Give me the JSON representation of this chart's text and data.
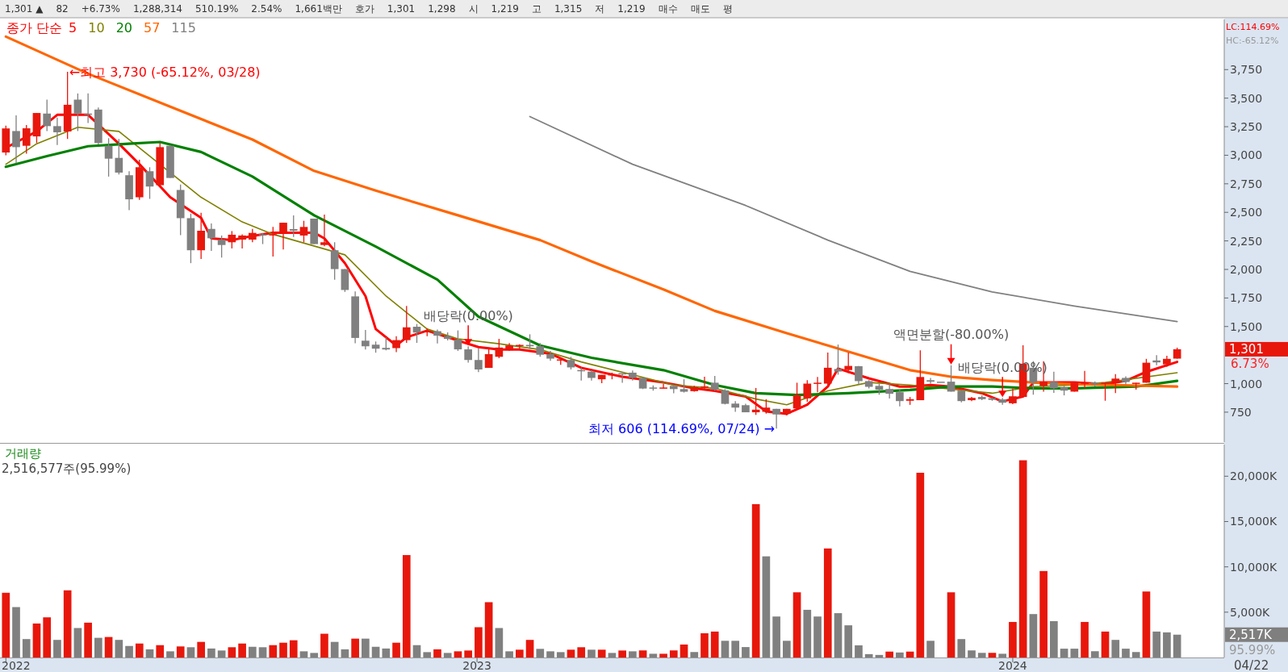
{
  "chart_data": [
    {
      "type": "candlestick",
      "tick_labels": "y",
      "legend": "top left",
      "legend_title": "종가 단순",
      "xlim": [
        "2022-02-10",
        "2024-05-23"
      ],
      "ylim": [
        488,
        4190
      ],
      "yticks": [
        750,
        {
          "value": 1000,
          "label": "1,000"
        },
        {
          "value": 1500,
          "label": "1,500"
        },
        {
          "value": 1750,
          "label": "1,750"
        },
        {
          "value": 2000,
          "label": "2,000"
        },
        {
          "value": 2250,
          "label": "2,250"
        },
        {
          "value": 2500,
          "label": "2,500"
        },
        {
          "value": 2750,
          "label": "2,750"
        },
        {
          "value": 3000,
          "label": "3,000"
        },
        {
          "value": 3250,
          "label": "3,250"
        },
        {
          "value": 3500,
          "label": "3,500"
        },
        {
          "value": 3750,
          "label": "3,750"
        }
      ],
      "x": [
        "2022-02-14",
        "2022-02-21",
        "2022-02-28",
        "2022-03-07",
        "2022-03-14",
        "2022-03-21",
        "2022-03-28",
        "2022-04-04",
        "2022-04-11",
        "2022-04-18",
        "2022-04-25",
        "2022-05-02",
        "2022-05-09",
        "2022-05-16",
        "2022-05-23",
        "2022-05-30",
        "2022-06-06",
        "2022-06-13",
        "2022-06-20",
        "2022-06-27",
        "2022-07-04",
        "2022-07-11",
        "2022-07-18",
        "2022-07-25",
        "2022-08-01",
        "2022-08-08",
        "2022-08-15",
        "2022-08-22",
        "2022-08-29",
        "2022-09-05",
        "2022-09-12",
        "2022-09-19",
        "2022-09-26",
        "2022-10-03",
        "2022-10-10",
        "2022-10-17",
        "2022-10-24",
        "2022-10-31",
        "2022-11-07",
        "2022-11-14",
        "2022-11-21",
        "2022-11-28",
        "2022-12-05",
        "2022-12-12",
        "2022-12-19",
        "2022-12-26",
        "2023-01-02",
        "2023-01-09",
        "2023-01-16",
        "2023-01-23",
        "2023-01-30",
        "2023-02-06",
        "2023-02-13",
        "2023-02-20",
        "2023-02-27",
        "2023-03-06",
        "2023-03-13",
        "2023-03-20",
        "2023-03-27",
        "2023-04-03",
        "2023-04-10",
        "2023-04-17",
        "2023-04-24",
        "2023-05-01",
        "2023-05-08",
        "2023-05-15",
        "2023-05-22",
        "2023-05-29",
        "2023-06-05",
        "2023-06-12",
        "2023-06-19",
        "2023-06-26",
        "2023-07-03",
        "2023-07-10",
        "2023-07-17",
        "2023-07-24",
        "2023-07-31",
        "2023-08-07",
        "2023-08-14",
        "2023-08-21",
        "2023-08-28",
        "2023-09-04",
        "2023-09-11",
        "2023-09-18",
        "2023-09-25",
        "2023-10-02",
        "2023-10-09",
        "2023-10-16",
        "2023-10-23",
        "2023-10-30",
        "2023-11-06",
        "2023-11-13",
        "2023-11-20",
        "2023-11-27",
        "2023-12-04",
        "2023-12-11",
        "2023-12-18",
        "2023-12-25",
        "2024-01-01",
        "2024-01-08",
        "2024-01-15",
        "2024-01-22",
        "2024-01-29",
        "2024-02-05",
        "2024-02-12",
        "2024-02-19",
        "2024-02-26",
        "2024-03-04",
        "2024-03-11",
        "2024-03-18",
        "2024-03-25",
        "2024-04-01",
        "2024-04-08",
        "2024-04-15",
        "2024-04-22"
      ],
      "ohlc": [
        [
          3024,
          3260,
          3000,
          3235
        ],
        [
          3212,
          3349,
          2931,
          3071
        ],
        [
          3083,
          3264,
          3013,
          3236
        ],
        [
          3165,
          3370,
          3107,
          3370
        ],
        [
          3365,
          3487,
          3212,
          3255
        ],
        [
          3255,
          3330,
          3090,
          3201
        ],
        [
          3208,
          3730,
          3142,
          3442
        ],
        [
          3487,
          3541,
          3212,
          3365
        ],
        [
          3365,
          3541,
          3283,
          3360
        ],
        [
          3400,
          3419,
          3095,
          3107
        ],
        [
          3083,
          3149,
          2813,
          2970
        ],
        [
          2977,
          3142,
          2832,
          2848
        ],
        [
          2825,
          2860,
          2520,
          2614
        ],
        [
          2632,
          2961,
          2609,
          2895
        ],
        [
          2860,
          2895,
          2618,
          2726
        ],
        [
          2738,
          3107,
          2738,
          3071
        ],
        [
          3083,
          3090,
          2801,
          2801
        ],
        [
          2696,
          2743,
          2301,
          2449
        ],
        [
          2449,
          2489,
          2055,
          2168
        ],
        [
          2168,
          2496,
          2092,
          2339
        ],
        [
          2355,
          2402,
          2163,
          2273
        ],
        [
          2261,
          2297,
          2104,
          2214
        ],
        [
          2238,
          2336,
          2184,
          2304
        ],
        [
          2261,
          2308,
          2184,
          2297
        ],
        [
          2261,
          2355,
          2238,
          2320
        ],
        [
          2308,
          2320,
          2222,
          2297
        ],
        [
          2297,
          2372,
          2113,
          2308
        ],
        [
          2320,
          2409,
          2175,
          2409
        ],
        [
          2353,
          2473,
          2285,
          2339
        ],
        [
          2297,
          2426,
          2238,
          2372
        ],
        [
          2445,
          2445,
          2222,
          2222
        ],
        [
          2214,
          2480,
          2203,
          2238
        ],
        [
          2168,
          2238,
          1909,
          2003
        ],
        [
          2003,
          2003,
          1803,
          1820
        ],
        [
          1764,
          1808,
          1353,
          1400
        ],
        [
          1376,
          1470,
          1299,
          1327
        ],
        [
          1341,
          1369,
          1271,
          1306
        ],
        [
          1313,
          1404,
          1292,
          1299
        ],
        [
          1311,
          1416,
          1275,
          1381
        ],
        [
          1381,
          1681,
          1357,
          1493
        ],
        [
          1498,
          1522,
          1357,
          1447
        ],
        [
          1455,
          1485,
          1415,
          1460
        ],
        [
          1459,
          1473,
          1351,
          1420
        ],
        [
          1415,
          1448,
          1378,
          1392
        ],
        [
          1385,
          1466,
          1286,
          1300
        ],
        [
          1300,
          1327,
          1184,
          1207
        ],
        [
          1207,
          1309,
          1101,
          1124
        ],
        [
          1138,
          1316,
          1138,
          1258
        ],
        [
          1235,
          1392,
          1223,
          1316
        ],
        [
          1300,
          1355,
          1286,
          1334
        ],
        [
          1332,
          1344,
          1304,
          1339
        ],
        [
          1339,
          1432,
          1304,
          1327
        ],
        [
          1327,
          1355,
          1235,
          1253
        ],
        [
          1258,
          1286,
          1200,
          1219
        ],
        [
          1202,
          1230,
          1165,
          1212
        ],
        [
          1207,
          1235,
          1124,
          1142
        ],
        [
          1119,
          1142,
          1027,
          1108
        ],
        [
          1105,
          1119,
          1027,
          1050
        ],
        [
          1038,
          1077,
          1003,
          1077
        ],
        [
          1073,
          1096,
          1038,
          1082
        ],
        [
          1091,
          1091,
          1008,
          1082
        ],
        [
          1096,
          1115,
          1027,
          1050
        ],
        [
          1050,
          1054,
          952,
          957
        ],
        [
          966,
          985,
          939,
          957
        ],
        [
          957,
          999,
          957,
          966
        ],
        [
          980,
          992,
          915,
          952
        ],
        [
          952,
          1038,
          922,
          929
        ],
        [
          934,
          980,
          929,
          969
        ],
        [
          966,
          1061,
          952,
          976
        ],
        [
          1008,
          1068,
          934,
          946
        ],
        [
          941,
          952,
          818,
          823
        ],
        [
          825,
          846,
          753,
          790
        ],
        [
          811,
          823,
          749,
          749
        ],
        [
          749,
          962,
          726,
          772
        ],
        [
          753,
          864,
          737,
          790
        ],
        [
          779,
          779,
          606,
          730
        ],
        [
          737,
          779,
          721,
          779
        ],
        [
          783,
          1008,
          783,
          899
        ],
        [
          871,
          1030,
          842,
          1000
        ],
        [
          1000,
          1058,
          925,
          1008
        ],
        [
          1000,
          1272,
          980,
          1139
        ],
        [
          1128,
          1342,
          1078,
          1106
        ],
        [
          1119,
          1272,
          1092,
          1155
        ],
        [
          1153,
          1153,
          994,
          1022
        ],
        [
          1022,
          1030,
          958,
          972
        ],
        [
          980,
          1000,
          903,
          947
        ],
        [
          953,
          994,
          869,
          911
        ],
        [
          925,
          947,
          800,
          847
        ],
        [
          850,
          883,
          814,
          864
        ],
        [
          855,
          1292,
          855,
          1058
        ],
        [
          1030,
          1050,
          1000,
          1017
        ],
        [
          1017,
          1017,
          1017,
          1017
        ],
        [
          1017,
          1161,
          930,
          930
        ],
        [
          939,
          939,
          836,
          847
        ],
        [
          855,
          883,
          847,
          875
        ],
        [
          883,
          897,
          855,
          864
        ],
        [
          872,
          880,
          850,
          858
        ],
        [
          861,
          875,
          814,
          833
        ],
        [
          828,
          958,
          820,
          889
        ],
        [
          883,
          1336,
          883,
          1175
        ],
        [
          1139,
          1197,
          903,
          1008
        ],
        [
          980,
          1197,
          930,
          1017
        ],
        [
          1014,
          1105,
          919,
          958
        ],
        [
          967,
          980,
          897,
          939
        ],
        [
          930,
          1017,
          930,
          1008
        ],
        [
          997,
          1111,
          958,
          1008
        ],
        [
          1008,
          1019,
          975,
          994
        ],
        [
          1000,
          1008,
          850,
          1008
        ],
        [
          1008,
          1083,
          917,
          1044
        ],
        [
          1050,
          1064,
          994,
          1014
        ],
        [
          1003,
          1008,
          947,
          1008
        ],
        [
          1008,
          1217,
          1008,
          1183
        ],
        [
          1203,
          1250,
          1161,
          1186
        ],
        [
          1169,
          1244,
          1147,
          1217
        ],
        [
          1219,
          1315,
          1219,
          1301
        ]
      ],
      "colors": [
        "#e8170c",
        "#808080",
        "#e8170c",
        "#e8170c",
        "#808080",
        "#808080",
        "#e8170c",
        "#808080",
        "#808080",
        "#808080",
        "#808080",
        "#808080",
        "#808080",
        "#e8170c",
        "#808080",
        "#e8170c",
        "#808080",
        "#808080",
        "#808080",
        "#e8170c",
        "#808080",
        "#808080",
        "#e8170c",
        "#e8170c",
        "#e8170c",
        "#808080",
        "#e8170c",
        "#e8170c",
        "#808080",
        "#e8170c",
        "#808080",
        "#e8170c",
        "#808080",
        "#808080",
        "#808080",
        "#808080",
        "#808080",
        "#808080",
        "#e8170c",
        "#e8170c",
        "#808080",
        "#e8170c",
        "#808080",
        "#808080",
        "#808080",
        "#808080",
        "#808080",
        "#e8170c",
        "#e8170c",
        "#e8170c",
        "#e8170c",
        "#808080",
        "#808080",
        "#808080",
        "#e8170c",
        "#808080",
        "#808080",
        "#808080",
        "#e8170c",
        "#e8170c",
        "#808080",
        "#808080",
        "#808080",
        "#808080",
        "#e8170c",
        "#808080",
        "#808080",
        "#e8170c",
        "#e8170c",
        "#808080",
        "#808080",
        "#808080",
        "#808080",
        "#e8170c",
        "#e8170c",
        "#808080",
        "#e8170c",
        "#e8170c",
        "#e8170c",
        "#e8170c",
        "#e8170c",
        "#808080",
        "#e8170c",
        "#808080",
        "#808080",
        "#808080",
        "#808080",
        "#808080",
        "#e8170c",
        "#e8170c",
        "#808080",
        "#808080",
        "#808080",
        "#808080",
        "#e8170c",
        "#808080",
        "#808080",
        "#808080",
        "#e8170c",
        "#e8170c",
        "#808080",
        "#e8170c",
        "#808080",
        "#808080",
        "#e8170c",
        "#e8170c",
        "#808080",
        "#e8170c",
        "#e8170c",
        "#808080",
        "#e8170c",
        "#e8170c",
        "#808080",
        "#e8170c",
        "#e8170c"
      ],
      "series": [
        {
          "type": "line",
          "name": "5",
          "color": "#ff0000",
          "x": [
            "2022-02-14",
            "2022-03-07",
            "2022-03-21",
            "2022-04-11",
            "2022-05-02",
            "2022-05-16",
            "2022-06-06",
            "2022-06-27",
            "2022-07-04",
            "2022-07-18",
            "2022-08-01",
            "2022-08-15",
            "2022-09-12",
            "2022-09-19",
            "2022-10-03",
            "2022-10-17",
            "2022-10-24",
            "2022-11-07",
            "2022-11-14",
            "2022-11-28",
            "2022-12-12",
            "2023-01-02",
            "2023-01-16",
            "2023-01-30",
            "2023-02-20",
            "2023-03-13",
            "2023-04-10",
            "2023-05-08",
            "2023-05-29",
            "2023-06-12",
            "2023-07-03",
            "2023-07-17",
            "2023-07-31",
            "2023-08-14",
            "2023-08-28",
            "2023-09-04",
            "2023-09-25",
            "2023-10-16",
            "2023-10-23",
            "2023-11-06",
            "2023-11-20",
            "2023-12-11",
            "2023-12-25",
            "2024-01-08",
            "2024-01-15",
            "2024-02-12",
            "2024-03-04",
            "2024-03-18",
            "2024-04-01",
            "2024-04-22"
          ],
          "values": [
            3065,
            3209,
            3354,
            3354,
            3101,
            2921,
            2632,
            2452,
            2272,
            2257,
            2293,
            2322,
            2322,
            2272,
            2055,
            1767,
            1478,
            1334,
            1406,
            1464,
            1406,
            1320,
            1298,
            1298,
            1262,
            1139,
            1060,
            1010,
            959,
            937,
            887,
            757,
            736,
            815,
            974,
            1132,
            1046,
            974,
            974,
            988,
            974,
            916,
            844,
            887,
            1010,
            1010,
            995,
            1024,
            1103,
            1190
          ]
        },
        {
          "type": "line",
          "name": "10",
          "color": "#808000",
          "x": [
            "2022-02-14",
            "2022-03-07",
            "2022-04-04",
            "2022-05-02",
            "2022-06-27",
            "2022-07-25",
            "2022-08-15",
            "2022-10-03",
            "2022-10-31",
            "2022-11-28",
            "2022-12-19",
            "2023-01-16",
            "2023-02-13",
            "2023-03-13",
            "2023-05-15",
            "2023-06-12",
            "2023-07-10",
            "2023-07-31",
            "2023-08-28",
            "2023-09-25",
            "2023-10-23",
            "2023-12-18",
            "2024-01-15",
            "2024-02-12",
            "2024-03-04",
            "2024-04-22"
          ],
          "values": [
            2921,
            3101,
            3245,
            3209,
            2632,
            2416,
            2308,
            2128,
            1767,
            1478,
            1392,
            1349,
            1298,
            1190,
            988,
            959,
            865,
            815,
            937,
            1010,
            988,
            916,
            974,
            988,
            1010,
            1096
          ]
        },
        {
          "type": "line",
          "name": "20",
          "color": "#008000",
          "x": [
            "2022-02-14",
            "2022-03-14",
            "2022-04-11",
            "2022-05-09",
            "2022-05-30",
            "2022-06-27",
            "2022-08-01",
            "2022-09-12",
            "2022-10-24",
            "2022-12-05",
            "2023-01-02",
            "2023-02-13",
            "2023-03-20",
            "2023-05-08",
            "2023-06-12",
            "2023-07-10",
            "2023-08-07",
            "2023-09-11",
            "2023-10-23",
            "2023-11-20",
            "2023-12-18",
            "2024-01-15",
            "2024-02-12",
            "2024-03-25",
            "2024-04-22"
          ],
          "values": [
            2899,
            2993,
            3079,
            3101,
            3116,
            3029,
            2813,
            2474,
            2200,
            1911,
            1587,
            1334,
            1226,
            1118,
            988,
            916,
            901,
            916,
            945,
            974,
            974,
            959,
            959,
            974,
            1024
          ]
        },
        {
          "type": "line",
          "name": "57",
          "color": "#ff6600",
          "x": [
            "2022-02-14",
            "2022-04-11",
            "2022-06-06",
            "2022-08-01",
            "2022-09-12",
            "2022-10-24",
            "2022-12-19",
            "2023-02-13",
            "2023-03-20",
            "2023-05-08",
            "2023-06-12",
            "2023-07-31",
            "2023-08-28",
            "2023-09-25",
            "2023-10-23",
            "2023-11-20",
            "2023-12-18",
            "2024-01-15",
            "2024-02-12",
            "2024-04-22"
          ],
          "values": [
            4039,
            3714,
            3426,
            3137,
            2863,
            2690,
            2474,
            2257,
            2070,
            1825,
            1637,
            1442,
            1334,
            1226,
            1118,
            1060,
            1031,
            1010,
            995,
            974
          ]
        },
        {
          "type": "line",
          "name": "115",
          "color": "#808080",
          "x": [
            "2023-02-06",
            "2023-04-17",
            "2023-07-03",
            "2023-08-28",
            "2023-10-23",
            "2023-12-18",
            "2024-02-12",
            "2024-04-22"
          ],
          "values": [
            3339,
            2921,
            2560,
            2257,
            1983,
            1803,
            1680,
            1543
          ]
        }
      ],
      "annotations": [
        {
          "text": "←최고 3,730 (-65.12%, 03/28)",
          "x": "2022-03-28",
          "y": 3730
        },
        {
          "text": "최저 606 (114.69%, 07/24) →",
          "x": "2023-07-24",
          "y": 606
        },
        {
          "text": "배당락(0.00%)",
          "x": "2022-12-26",
          "y": 1327
        },
        {
          "text": "액면분할(-80.00%)",
          "x": "2023-11-20",
          "y": 1161
        },
        {
          "text": "배당락(0.00%)",
          "x": "2023-12-25",
          "y": 875
        },
        "1,301 ▲",
        "82",
        "+6.73%",
        "1,288,314",
        "510.19%",
        "2.54%",
        "1,661백만",
        "호가",
        "1,301",
        "1,298",
        "시",
        "1,219",
        "고",
        "1,315",
        "저",
        "1,219",
        "매수",
        "매도",
        "평",
        "LC:114.69%",
        "HC:-65.12%",
        "1,301",
        "6.73%"
      ]
    },
    {
      "type": "bar",
      "title": "거래량",
      "subtitle": "2,516,577주(95.99%)",
      "xlim": [
        "2022-02-10",
        "2024-05-23"
      ],
      "ylim": [
        0,
        23500
      ],
      "xticks": [
        {
          "value": "2022-02-14",
          "label": "2022"
        },
        {
          "value": "2023-01-01",
          "label": "2023"
        },
        {
          "value": "2024-01-01",
          "label": "2024"
        }
      ],
      "yticks": [
        {
          "value": 5000,
          "label": "5,000K"
        },
        {
          "value": 10000,
          "label": "10,000K"
        },
        {
          "value": 15000,
          "label": "15,000K"
        },
        {
          "value": 20000,
          "label": "20,000K"
        }
      ],
      "x": [
        "2022-02-14",
        "2022-02-21",
        "2022-02-28",
        "2022-03-07",
        "2022-03-14",
        "2022-03-21",
        "2022-03-28",
        "2022-04-04",
        "2022-04-11",
        "2022-04-18",
        "2022-04-25",
        "2022-05-02",
        "2022-05-09",
        "2022-05-16",
        "2022-05-23",
        "2022-05-30",
        "2022-06-06",
        "2022-06-13",
        "2022-06-20",
        "2022-06-27",
        "2022-07-04",
        "2022-07-11",
        "2022-07-18",
        "2022-07-25",
        "2022-08-01",
        "2022-08-08",
        "2022-08-15",
        "2022-08-22",
        "2022-08-29",
        "2022-09-05",
        "2022-09-12",
        "2022-09-19",
        "2022-09-26",
        "2022-10-03",
        "2022-10-10",
        "2022-10-17",
        "2022-10-24",
        "2022-10-31",
        "2022-11-07",
        "2022-11-14",
        "2022-11-21",
        "2022-11-28",
        "2022-12-05",
        "2022-12-12",
        "2022-12-19",
        "2022-12-26",
        "2023-01-02",
        "2023-01-09",
        "2023-01-16",
        "2023-01-23",
        "2023-01-30",
        "2023-02-06",
        "2023-02-13",
        "2023-02-20",
        "2023-02-27",
        "2023-03-06",
        "2023-03-13",
        "2023-03-20",
        "2023-03-27",
        "2023-04-03",
        "2023-04-10",
        "2023-04-17",
        "2023-04-24",
        "2023-05-01",
        "2023-05-08",
        "2023-05-15",
        "2023-05-22",
        "2023-05-29",
        "2023-06-05",
        "2023-06-12",
        "2023-06-19",
        "2023-06-26",
        "2023-07-03",
        "2023-07-10",
        "2023-07-17",
        "2023-07-24",
        "2023-07-31",
        "2023-08-07",
        "2023-08-14",
        "2023-08-21",
        "2023-08-28",
        "2023-09-04",
        "2023-09-11",
        "2023-09-18",
        "2023-09-25",
        "2023-10-02",
        "2023-10-09",
        "2023-10-16",
        "2023-10-23",
        "2023-10-30",
        "2023-11-06",
        "2023-11-13",
        "2023-11-20",
        "2023-11-27",
        "2023-12-04",
        "2023-12-11",
        "2023-12-18",
        "2023-12-25",
        "2024-01-01",
        "2024-01-08",
        "2024-01-15",
        "2024-01-22",
        "2024-01-29",
        "2024-02-05",
        "2024-02-12",
        "2024-02-19",
        "2024-02-26",
        "2024-03-04",
        "2024-03-11",
        "2024-03-18",
        "2024-03-25",
        "2024-04-01",
        "2024-04-08",
        "2024-04-15",
        "2024-04-22"
      ],
      "values": [
        7140,
        5560,
        2030,
        3750,
        4430,
        1940,
        7410,
        3250,
        3840,
        2170,
        2260,
        1940,
        1270,
        1540,
        900,
        1360,
        680,
        1220,
        1130,
        1720,
        990,
        770,
        1130,
        1540,
        1180,
        1130,
        1360,
        1630,
        1900,
        680,
        500,
        2620,
        1720,
        900,
        2080,
        2080,
        1180,
        990,
        1630,
        11300,
        1360,
        590,
        900,
        500,
        680,
        770,
        3340,
        6100,
        3250,
        680,
        860,
        1940,
        950,
        680,
        590,
        860,
        1130,
        860,
        860,
        500,
        770,
        680,
        780,
        410,
        410,
        780,
        1430,
        600,
        2670,
        2860,
        1840,
        1840,
        1150,
        16920,
        11160,
        4520,
        1840,
        7190,
        5260,
        4520,
        12030,
        4890,
        3550,
        1340,
        370,
        280,
        650,
        550,
        650,
        20380,
        1840,
        0,
        7190,
        2030,
        780,
        510,
        510,
        410,
        3920,
        21760,
        4790,
        9540,
        4010,
        970,
        970,
        3920,
        690,
        2860,
        1940,
        970,
        600,
        7280,
        2860,
        2770,
        2517
      ],
      "colors": [
        "#e8170c",
        "#808080",
        "#808080",
        "#e8170c",
        "#e8170c",
        "#808080",
        "#e8170c",
        "#808080",
        "#e8170c",
        "#808080",
        "#e8170c",
        "#808080",
        "#808080",
        "#e8170c",
        "#808080",
        "#e8170c",
        "#808080",
        "#e8170c",
        "#808080",
        "#e8170c",
        "#808080",
        "#808080",
        "#e8170c",
        "#e8170c",
        "#808080",
        "#808080",
        "#e8170c",
        "#e8170c",
        "#e8170c",
        "#808080",
        "#808080",
        "#e8170c",
        "#808080",
        "#808080",
        "#e8170c",
        "#808080",
        "#808080",
        "#808080",
        "#e8170c",
        "#e8170c",
        "#808080",
        "#808080",
        "#e8170c",
        "#808080",
        "#e8170c",
        "#e8170c",
        "#e8170c",
        "#e8170c",
        "#808080",
        "#808080",
        "#e8170c",
        "#e8170c",
        "#808080",
        "#808080",
        "#808080",
        "#e8170c",
        "#e8170c",
        "#808080",
        "#e8170c",
        "#808080",
        "#e8170c",
        "#808080",
        "#e8170c",
        "#808080",
        "#e8170c",
        "#e8170c",
        "#e8170c",
        "#808080",
        "#e8170c",
        "#e8170c",
        "#808080",
        "#808080",
        "#808080",
        "#e8170c",
        "#808080",
        "#808080",
        "#808080",
        "#e8170c",
        "#808080",
        "#808080",
        "#e8170c",
        "#808080",
        "#808080",
        "#808080",
        "#808080",
        "#808080",
        "#e8170c",
        "#808080",
        "#e8170c",
        "#e8170c",
        "#808080",
        "#808080",
        "#e8170c",
        "#808080",
        "#808080",
        "#808080",
        "#e8170c",
        "#808080",
        "#e8170c",
        "#e8170c",
        "#808080",
        "#e8170c",
        "#808080",
        "#808080",
        "#808080",
        "#e8170c",
        "#808080",
        "#e8170c",
        "#808080",
        "#808080",
        "#808080",
        "#e8170c",
        "#808080",
        "#808080",
        "#808080"
      ],
      "annotations": [
        "2,517K",
        "95.99%",
        "04/22"
      ]
    }
  ]
}
